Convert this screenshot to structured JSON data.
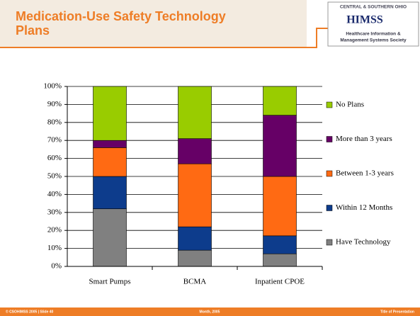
{
  "header": {
    "title": "Medication-Use Safety Technology Plans",
    "logo": {
      "top": "CENTRAL & SOUTHERN OHIO",
      "name": "HIMSS",
      "line1": "Healthcare Information &",
      "line2": "Management Systems Society"
    }
  },
  "footer": {
    "left": "© CSOHIMSS 2005  |  Slide 40",
    "center": "Month, 2005",
    "right": "Title of Presentation"
  },
  "chart_data": {
    "type": "stacked_bar",
    "categories": [
      "Smart Pumps",
      "BCMA",
      "Inpatient CPOE"
    ],
    "series": [
      {
        "name": "Have Technology",
        "color": "#808080",
        "values": [
          32,
          9,
          7
        ]
      },
      {
        "name": "Within 12 Months",
        "color": "#0d3c8c",
        "values": [
          18,
          13,
          10
        ]
      },
      {
        "name": "Between 1-3 years",
        "color": "#ff6a13",
        "values": [
          16,
          35,
          33
        ]
      },
      {
        "name": "More than 3 years",
        "color": "#660066",
        "values": [
          4,
          14,
          34
        ]
      },
      {
        "name": "No Plans",
        "color": "#99cc00",
        "values": [
          30,
          29,
          16
        ]
      }
    ],
    "ylim": [
      0,
      100
    ],
    "yticks": [
      {
        "value": 0,
        "label": "0%"
      },
      {
        "value": 10,
        "label": "10%"
      },
      {
        "value": 20,
        "label": "20%"
      },
      {
        "value": 30,
        "label": "30%"
      },
      {
        "value": 40,
        "label": "40%"
      },
      {
        "value": 50,
        "label": "50%"
      },
      {
        "value": 60,
        "label": "60%"
      },
      {
        "value": 70,
        "label": "70%"
      },
      {
        "value": 80,
        "label": "80%"
      },
      {
        "value": 90,
        "label": "90%"
      },
      {
        "value": 100,
        "label": "100%"
      }
    ],
    "grid": true,
    "legend": "right"
  }
}
